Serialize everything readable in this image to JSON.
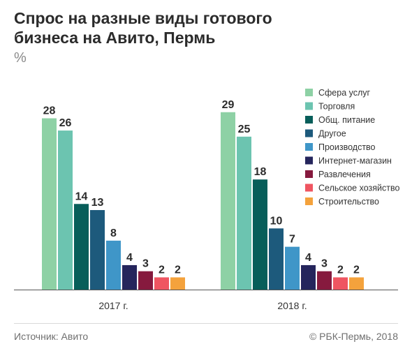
{
  "header": {
    "title": "Спрос на разные виды готового\nбизнеса на Авито, Пермь",
    "unit": "%"
  },
  "footer": {
    "source": "Источник: Авито",
    "copyright": "© РБК-Пермь, 2018"
  },
  "chart_data": {
    "type": "bar",
    "title": "Спрос на разные виды готового бизнеса на Авито, Пермь",
    "ylabel": "%",
    "xlabel": "",
    "categories": [
      "2017 г.",
      "2018 г."
    ],
    "ylim": [
      0,
      30
    ],
    "grid": false,
    "legend_position": "top-right",
    "series": [
      {
        "name": "Сфера услуг",
        "color": "#8ed1a5",
        "values": [
          28,
          29
        ]
      },
      {
        "name": "Торговля",
        "color": "#6cc4b0",
        "values": [
          26,
          25
        ]
      },
      {
        "name": "Общ. питание",
        "color": "#075e5a",
        "values": [
          14,
          18
        ]
      },
      {
        "name": "Другое",
        "color": "#1d5a7c",
        "values": [
          13,
          10
        ]
      },
      {
        "name": "Производство",
        "color": "#3f96c8",
        "values": [
          8,
          7
        ]
      },
      {
        "name": "Интернет-магазин",
        "color": "#25255c",
        "values": [
          4,
          4
        ]
      },
      {
        "name": "Развлечения",
        "color": "#861a3e",
        "values": [
          3,
          3
        ]
      },
      {
        "name": "Сельское хозяйство",
        "color": "#ef5561",
        "values": [
          2,
          2
        ]
      },
      {
        "name": "Строительство",
        "color": "#f4a23c",
        "values": [
          2,
          2
        ]
      }
    ]
  }
}
